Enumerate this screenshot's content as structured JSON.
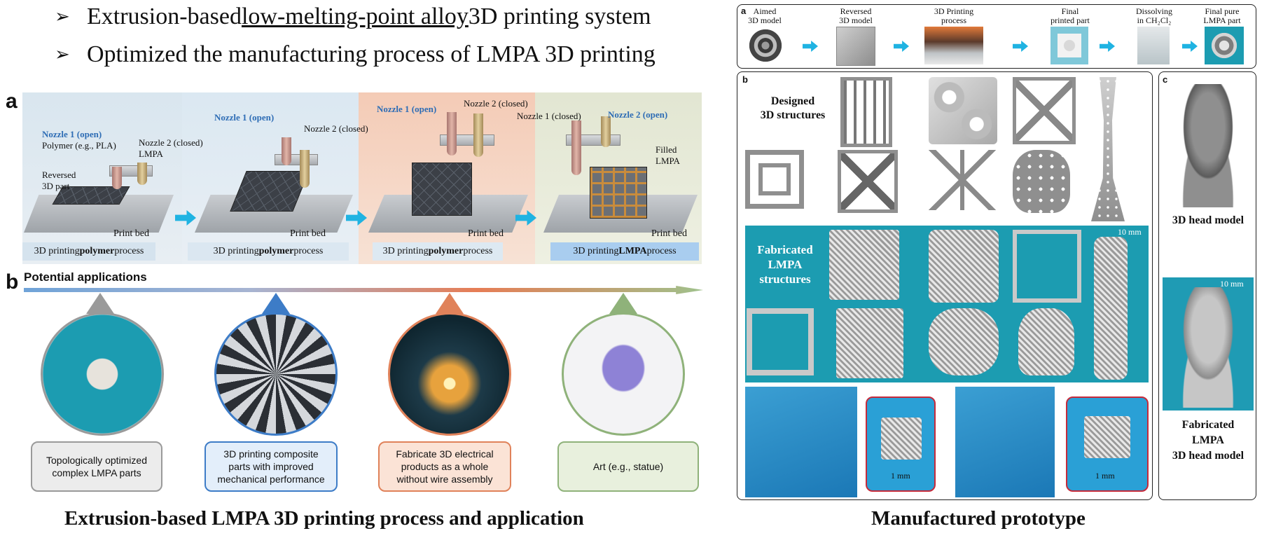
{
  "header": {
    "bullet_symbol": "➢",
    "bullet1": {
      "pre": "Extrusion-based ",
      "underlined": "low-melting-point alloy",
      "post": " 3D printing system"
    },
    "bullet2": "Optimized the manufacturing process of LMPA 3D printing"
  },
  "process": {
    "tag": "a",
    "stages": [
      {
        "label_pre": "3D printing ",
        "label_bold": "polymer",
        "label_post": " process",
        "bed": "Print bed"
      },
      {
        "label_pre": "3D printing ",
        "label_bold": "polymer",
        "label_post": " process",
        "bed": "Print bed"
      },
      {
        "label_pre": "3D printing ",
        "label_bold": "polymer",
        "label_post": " process",
        "bed": "Print bed"
      },
      {
        "label_pre": "3D printing ",
        "label_bold": "LMPA",
        "label_post": " process",
        "bed": "Print bed"
      }
    ],
    "annotations": {
      "s1_nozzle1": "Nozzle 1 (open)",
      "s1_polymer": "Polymer (e.g., PLA)",
      "s1_nozzle2": "Nozzle 2 (closed)",
      "s1_lmpa": "LMPA",
      "s1_reversed": "Reversed",
      "s1_part": "3D part",
      "s2_nozzle1": "Nozzle 1 (open)",
      "s2_nozzle2": "Nozzle 2 (closed)",
      "s3_nozzle1": "Nozzle 1 (open)",
      "s3_nozzle2": "Nozzle 2 (closed)",
      "s4_nozzle1": "Nozzle 1 (closed)",
      "s4_nozzle2": "Nozzle 2 (open)",
      "s4_filled": "Filled",
      "s4_lmpa": "LMPA"
    }
  },
  "applications": {
    "tag": "b",
    "title": "Potential applications",
    "items": [
      {
        "text1": "Topologically optimized",
        "text2": "complex LMPA parts",
        "color": "#9a9a9a",
        "bg": "#ececec"
      },
      {
        "text1": "3D printing composite",
        "text2": "parts with improved",
        "text3": "mechanical performance",
        "color": "#3d7cc7",
        "bg": "#e3eefa"
      },
      {
        "text1": "Fabricate 3D electrical",
        "text2": "products as a whole",
        "text3": "without wire assembly",
        "color": "#e0825a",
        "bg": "#fbe3d6"
      },
      {
        "text1": "Art (e.g., statue)",
        "color": "#8fb27a",
        "bg": "#e8f0dd"
      }
    ]
  },
  "left_caption": "Extrusion-based LMPA 3D printing process and application",
  "right_caption": "Manufactured prototype",
  "workflow": {
    "tag": "a",
    "steps": [
      {
        "l1": "Aimed",
        "l2": "3D model"
      },
      {
        "l1": "Reversed",
        "l2": "3D model"
      },
      {
        "l1": "3D Printing",
        "l2": "process"
      },
      {
        "l1": "Final",
        "l2": "printed part"
      },
      {
        "l1": "Dissolving",
        "l2": "in CH₂Cl₂"
      },
      {
        "l1": "Final pure",
        "l2": "LMPA part"
      }
    ]
  },
  "structures": {
    "tag": "b",
    "designed_l1": "Designed",
    "designed_l2": "3D structures",
    "fabricated_l1": "Fabricated",
    "fabricated_l2": "LMPA",
    "fabricated_l3": "structures",
    "scale_10mm": "10 mm",
    "scale_1mm_a": "1 mm",
    "scale_1mm_b": "1 mm"
  },
  "head": {
    "tag": "c",
    "model_label": "3D head model",
    "scale": "10 mm",
    "fab_l1": "Fabricated",
    "fab_l2": "LMPA",
    "fab_l3": "3D head model"
  }
}
